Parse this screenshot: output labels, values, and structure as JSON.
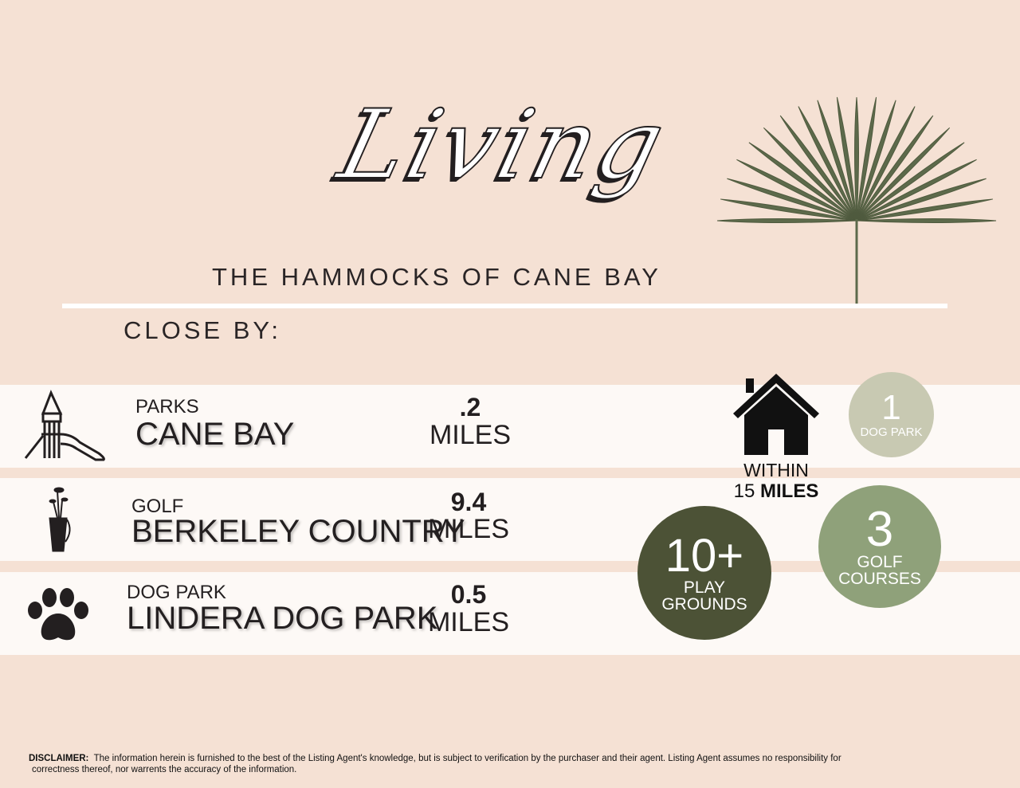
{
  "header": {
    "script_title": "Living",
    "subtitle": "THE HAMMOCKS OF CANE BAY",
    "section_label": "CLOSE BY:"
  },
  "rows": [
    {
      "category": "PARKS",
      "name": "CANE BAY",
      "distance": ".2",
      "unit": "MILES",
      "icon": "playground-slide-icon"
    },
    {
      "category": "GOLF",
      "name": "BERKELEY COUNTRY",
      "distance": "9.4",
      "unit": "MILES",
      "icon": "golf-bag-icon"
    },
    {
      "category": "DOG PARK",
      "name": "LINDERA DOG PARK",
      "distance": "0.5",
      "unit": "MILES",
      "icon": "paw-print-icon"
    }
  ],
  "within": {
    "line1": "WITHIN",
    "number": "15",
    "unit": "MILES",
    "icon": "house-icon"
  },
  "stats": {
    "dog_park": {
      "number": "1",
      "label": "DOG PARK"
    },
    "golf": {
      "number": "3",
      "label_1": "GOLF",
      "label_2": "COURSES"
    },
    "playgrounds": {
      "number": "10+",
      "label_1": "PLAY",
      "label_2": "GROUNDS"
    }
  },
  "disclaimer": {
    "label": "DISCLAIMER:",
    "line1": "The information herein is furnished to the best of the Listing Agent's knowledge, but is subject to verification by the purchaser and their agent. Listing Agent assumes no responsibility for",
    "line2": "correctness thereof, nor warrents the accuracy of the information."
  },
  "colors": {
    "background": "#f5e1d4",
    "row_band": "#fdf9f6",
    "dog_circle": "#c8c9b2",
    "golf_circle": "#8fa17a",
    "play_circle": "#4c5236",
    "palm": "#5d6a4b"
  }
}
